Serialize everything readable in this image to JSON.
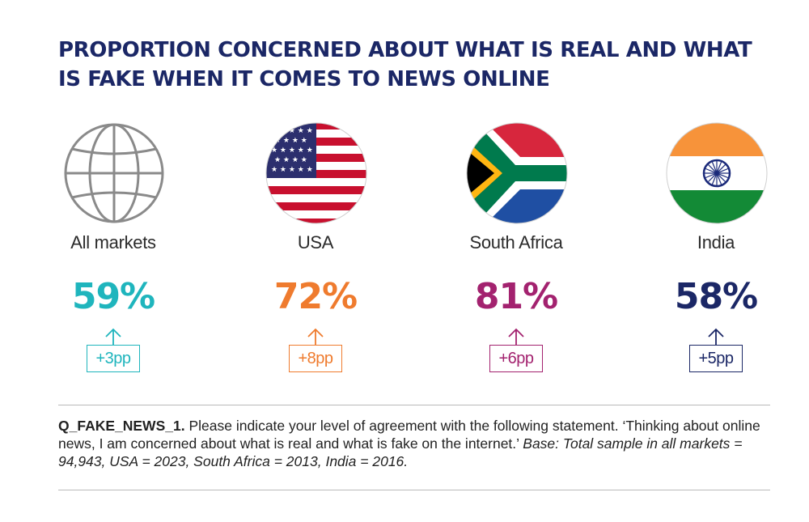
{
  "title": "PROPORTION CONCERNED ABOUT WHAT IS REAL AND WHAT IS FAKE WHEN IT COMES TO NEWS ONLINE",
  "colors": {
    "all_markets": "#1fb5bd",
    "usa": "#ef7b2e",
    "south_africa": "#a3226f",
    "india": "#1b2766"
  },
  "chart_data": {
    "type": "table",
    "title": "PROPORTION CONCERNED ABOUT WHAT IS REAL AND WHAT IS FAKE WHEN IT COMES TO NEWS ONLINE",
    "categories": [
      "All markets",
      "USA",
      "South Africa",
      "India"
    ],
    "values": [
      59,
      72,
      81,
      58
    ],
    "value_labels": [
      "59%",
      "72%",
      "81%",
      "58%"
    ],
    "changes_pp": [
      3,
      8,
      6,
      5
    ],
    "change_labels": [
      "+3pp",
      "+8pp",
      "+6pp",
      "+5pp"
    ],
    "icons": [
      "globe-icon",
      "usa-flag-icon",
      "south-africa-flag-icon",
      "india-flag-icon"
    ]
  },
  "footnote": {
    "code": "Q_FAKE_NEWS_1.",
    "question": "Please indicate your level of agreement with the following statement. ‘Thinking about online news, I am concerned about what is real and what is fake on the internet.’",
    "base": "Base: Total sample in all markets = 94,943, USA = 2023, South Africa = 2013, India = 2016."
  }
}
